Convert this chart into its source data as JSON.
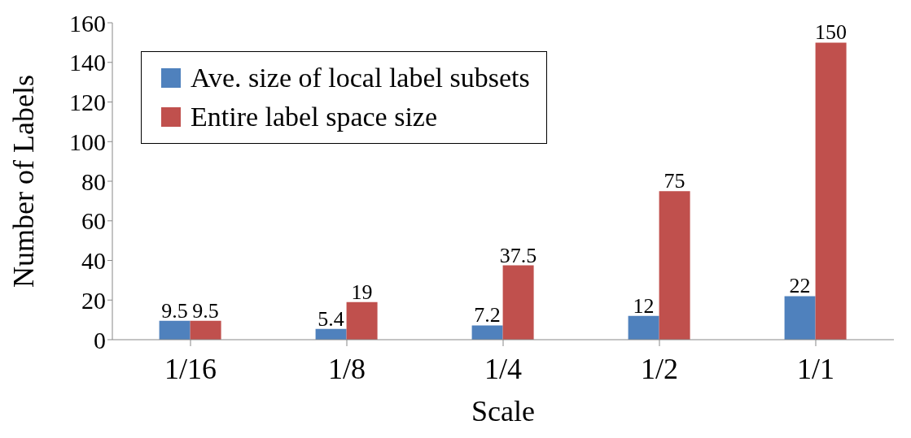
{
  "chart_data": {
    "type": "bar",
    "xlabel": "Scale",
    "ylabel": "Number of Labels",
    "categories": [
      "1/16",
      "1/8",
      "1/4",
      "1/2",
      "1/1"
    ],
    "series": [
      {
        "name": "Ave. size of local label subsets",
        "color": "#4f81bd",
        "values": [
          9.5,
          5.4,
          7.2,
          12,
          22
        ]
      },
      {
        "name": "Entire label space size",
        "color": "#c0504d",
        "values": [
          9.5,
          19,
          37.5,
          75,
          150
        ]
      }
    ],
    "ylim": [
      0,
      160
    ],
    "yticks": [
      0,
      20,
      40,
      60,
      80,
      100,
      120,
      140,
      160
    ],
    "grid": false,
    "legend": "top left",
    "data_labels": true
  }
}
